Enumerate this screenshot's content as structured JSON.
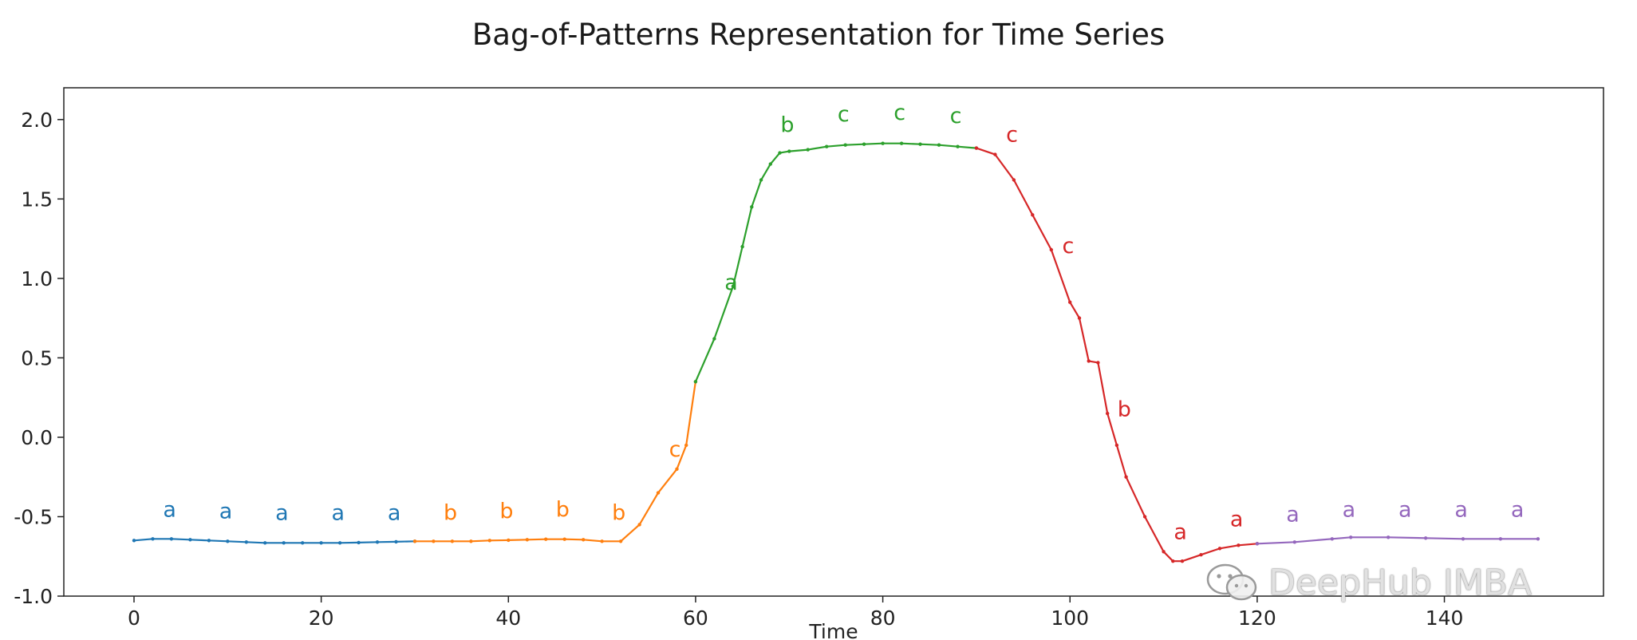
{
  "chart_data": {
    "type": "line",
    "title": "Bag-of-Patterns Representation for Time Series",
    "xlabel": "Time",
    "ylabel": "",
    "xlim": [
      -7.5,
      157
    ],
    "ylim": [
      -1.0,
      2.2
    ],
    "xticks": [
      0,
      20,
      40,
      60,
      80,
      100,
      120,
      140
    ],
    "yticks": [
      -1.0,
      -0.5,
      0.0,
      0.5,
      1.0,
      1.5,
      2.0
    ],
    "grid": false,
    "legend": "none",
    "series": [
      {
        "color": "#1f77b4",
        "x": [
          0,
          2,
          4,
          6,
          8,
          10,
          12,
          14,
          16,
          18,
          20,
          22,
          24,
          26,
          28,
          30
        ],
        "y": [
          -0.65,
          -0.64,
          -0.64,
          -0.645,
          -0.65,
          -0.655,
          -0.66,
          -0.665,
          -0.665,
          -0.665,
          -0.665,
          -0.665,
          -0.663,
          -0.66,
          -0.658,
          -0.655
        ]
      },
      {
        "color": "#ff7f0e",
        "x": [
          30,
          32,
          34,
          36,
          38,
          40,
          42,
          44,
          46,
          48,
          50,
          52,
          54,
          56,
          58,
          59,
          60
        ],
        "y": [
          -0.655,
          -0.655,
          -0.655,
          -0.655,
          -0.65,
          -0.648,
          -0.645,
          -0.642,
          -0.642,
          -0.645,
          -0.655,
          -0.655,
          -0.55,
          -0.35,
          -0.2,
          -0.05,
          0.35
        ]
      },
      {
        "color": "#2ca02c",
        "x": [
          60,
          62,
          64,
          65,
          66,
          67,
          68,
          69,
          70,
          72,
          74,
          76,
          78,
          80,
          82,
          84,
          86,
          88,
          90
        ],
        "y": [
          0.35,
          0.62,
          0.95,
          1.2,
          1.45,
          1.62,
          1.72,
          1.79,
          1.8,
          1.81,
          1.83,
          1.84,
          1.845,
          1.85,
          1.85,
          1.845,
          1.84,
          1.83,
          1.82
        ]
      },
      {
        "color": "#d62728",
        "x": [
          90,
          92,
          94,
          96,
          98,
          100,
          101,
          102,
          103,
          104,
          105,
          106,
          108,
          110,
          111,
          112,
          114,
          116,
          118,
          120
        ],
        "y": [
          1.82,
          1.78,
          1.62,
          1.4,
          1.18,
          0.85,
          0.75,
          0.48,
          0.47,
          0.15,
          -0.05,
          -0.25,
          -0.5,
          -0.72,
          -0.78,
          -0.78,
          -0.74,
          -0.7,
          -0.68,
          -0.67
        ]
      },
      {
        "color": "#9467bd",
        "x": [
          120,
          124,
          128,
          130,
          134,
          138,
          142,
          146,
          150
        ],
        "y": [
          -0.67,
          -0.66,
          -0.64,
          -0.63,
          -0.63,
          -0.635,
          -0.64,
          -0.64,
          -0.64
        ]
      }
    ],
    "annotations": [
      {
        "text": "a",
        "x": 3.8,
        "y": -0.5,
        "color": "#1f77b4"
      },
      {
        "text": "a",
        "x": 9.8,
        "y": -0.51,
        "color": "#1f77b4"
      },
      {
        "text": "a",
        "x": 15.8,
        "y": -0.52,
        "color": "#1f77b4"
      },
      {
        "text": "a",
        "x": 21.8,
        "y": -0.52,
        "color": "#1f77b4"
      },
      {
        "text": "a",
        "x": 27.8,
        "y": -0.52,
        "color": "#1f77b4"
      },
      {
        "text": "b",
        "x": 33.8,
        "y": -0.52,
        "color": "#ff7f0e"
      },
      {
        "text": "b",
        "x": 39.8,
        "y": -0.51,
        "color": "#ff7f0e"
      },
      {
        "text": "b",
        "x": 45.8,
        "y": -0.5,
        "color": "#ff7f0e"
      },
      {
        "text": "b",
        "x": 51.8,
        "y": -0.52,
        "color": "#ff7f0e"
      },
      {
        "text": "c",
        "x": 57.8,
        "y": -0.12,
        "color": "#ff7f0e"
      },
      {
        "text": "a",
        "x": 63.8,
        "y": 0.93,
        "color": "#2ca02c"
      },
      {
        "text": "b",
        "x": 69.8,
        "y": 1.92,
        "color": "#2ca02c"
      },
      {
        "text": "c",
        "x": 75.8,
        "y": 1.99,
        "color": "#2ca02c"
      },
      {
        "text": "c",
        "x": 81.8,
        "y": 2.0,
        "color": "#2ca02c"
      },
      {
        "text": "c",
        "x": 87.8,
        "y": 1.98,
        "color": "#2ca02c"
      },
      {
        "text": "c",
        "x": 93.8,
        "y": 1.86,
        "color": "#d62728"
      },
      {
        "text": "c",
        "x": 99.8,
        "y": 1.16,
        "color": "#d62728"
      },
      {
        "text": "b",
        "x": 105.8,
        "y": 0.13,
        "color": "#d62728"
      },
      {
        "text": "a",
        "x": 111.8,
        "y": -0.64,
        "color": "#d62728"
      },
      {
        "text": "a",
        "x": 117.8,
        "y": -0.56,
        "color": "#d62728"
      },
      {
        "text": "a",
        "x": 123.8,
        "y": -0.53,
        "color": "#9467bd"
      },
      {
        "text": "a",
        "x": 129.8,
        "y": -0.5,
        "color": "#9467bd"
      },
      {
        "text": "a",
        "x": 135.8,
        "y": -0.5,
        "color": "#9467bd"
      },
      {
        "text": "a",
        "x": 141.8,
        "y": -0.5,
        "color": "#9467bd"
      },
      {
        "text": "a",
        "x": 147.8,
        "y": -0.5,
        "color": "#9467bd"
      }
    ]
  },
  "watermark": {
    "text": "DeepHub IMBA",
    "icon": "wechat-icon"
  }
}
